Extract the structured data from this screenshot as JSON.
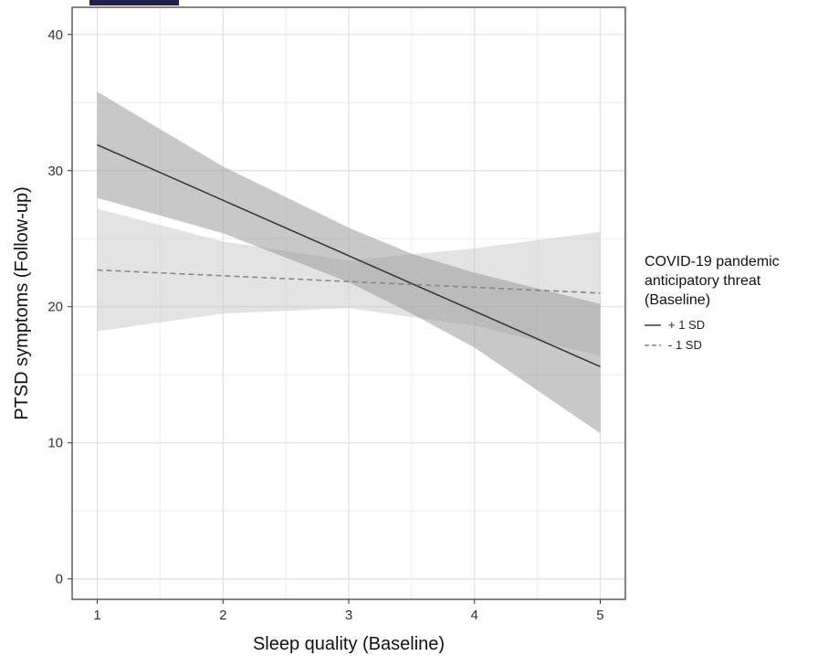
{
  "header": {
    "color": "#22224a"
  },
  "chart_data": {
    "type": "line",
    "title": "",
    "xlabel": "Sleep quality (Baseline)",
    "ylabel": "PTSD symptoms (Follow-up)",
    "xlim": [
      0.8,
      5.2
    ],
    "ylim": [
      -1.5,
      42
    ],
    "x_ticks": [
      1,
      2,
      3,
      4,
      5
    ],
    "x_tick_labels": [
      "1",
      "2",
      "3",
      "4",
      "5"
    ],
    "y_ticks": [
      0,
      10,
      20,
      30,
      40
    ],
    "y_tick_labels": [
      "0",
      "10",
      "20",
      "30",
      "40"
    ],
    "grid": true,
    "legend": {
      "title_lines": [
        "COVID-19 pandemic",
        "anticipatory threat",
        "(Baseline)"
      ],
      "position": "right"
    },
    "series": [
      {
        "name": "+ 1 SD",
        "line_style": "solid",
        "color": "#3a3a3a",
        "band_color": "#9a9a9a",
        "band_opacity": 0.55,
        "x": [
          1,
          5
        ],
        "y": [
          31.9,
          15.6
        ],
        "band": {
          "x": [
            1,
            2,
            3,
            3.5,
            4,
            5
          ],
          "lower": [
            28.0,
            25.4,
            21.8,
            19.5,
            17.0,
            10.7
          ],
          "upper": [
            35.8,
            30.3,
            25.8,
            23.9,
            22.5,
            20.2
          ]
        }
      },
      {
        "name": "- 1 SD",
        "line_style": "dashed",
        "color": "#888888",
        "band_color": "#c8c8c8",
        "band_opacity": 0.5,
        "x": [
          1,
          5
        ],
        "y": [
          22.7,
          21.0
        ],
        "band": {
          "x": [
            1,
            2,
            3,
            4,
            5
          ],
          "lower": [
            18.2,
            19.5,
            19.9,
            18.6,
            16.4
          ],
          "upper": [
            27.2,
            24.8,
            23.4,
            24.3,
            25.5
          ]
        }
      }
    ]
  }
}
